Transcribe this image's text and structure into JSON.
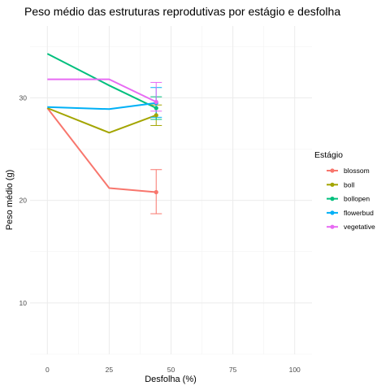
{
  "chart_data": {
    "type": "line",
    "title": "Peso médio das estruturas reprodutivas por estágio e desfolha",
    "xlabel": "Desfolha (%)",
    "ylabel": "Peso médio (g)",
    "x_ticks": [
      0,
      25,
      50,
      75,
      100
    ],
    "y_ticks": [
      10,
      20,
      30
    ],
    "xlim": [
      -7,
      107
    ],
    "ylim": [
      5,
      37
    ],
    "grid": true,
    "legend": {
      "title": "Estágio",
      "placement": "right"
    },
    "series": [
      {
        "name": "blossom",
        "color": "#F8766D",
        "x": [
          0,
          25,
          44
        ],
        "y": [
          29.0,
          21.2,
          20.8
        ],
        "error_bar": {
          "x": 44,
          "low": 18.7,
          "high": 23.0
        }
      },
      {
        "name": "boll",
        "color": "#A3A500",
        "x": [
          0,
          25,
          44
        ],
        "y": [
          29.0,
          26.6,
          28.3
        ],
        "error_bar": {
          "x": 44,
          "low": 27.3,
          "high": 29.3
        }
      },
      {
        "name": "bollopen",
        "color": "#00BF7D",
        "x": [
          0,
          25,
          44
        ],
        "y": [
          34.3,
          31.2,
          29.0
        ],
        "error_bar": {
          "x": 44,
          "low": 27.9,
          "high": 30.1
        }
      },
      {
        "name": "flowerbud",
        "color": "#00B0F6",
        "x": [
          0,
          25,
          44
        ],
        "y": [
          29.1,
          28.9,
          29.5
        ],
        "error_bar": {
          "x": 44,
          "low": 28.1,
          "high": 31.0
        }
      },
      {
        "name": "vegetative",
        "color": "#E76BF3",
        "x": [
          0,
          25,
          44
        ],
        "y": [
          31.8,
          31.8,
          29.6
        ],
        "error_bar": {
          "x": 44,
          "low": 28.7,
          "high": 31.5
        }
      }
    ]
  }
}
